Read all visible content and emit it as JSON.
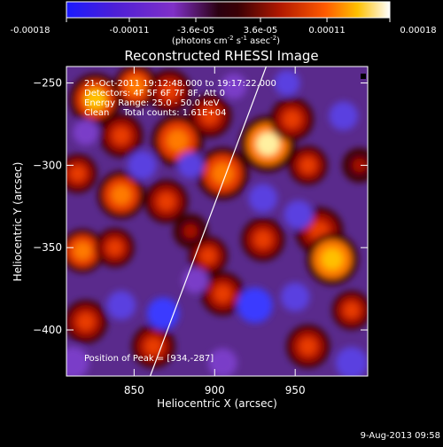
{
  "colorbar": {
    "tick_labels": [
      "-0.00018",
      "-0.00011",
      "-3.6e-05",
      "3.6e-05",
      "0.00011",
      "0.00018"
    ],
    "tick_values": [
      -0.00018,
      -0.00011,
      -3.6e-05,
      3.6e-05,
      0.00011,
      0.00018
    ],
    "unit_label_main": "(photons cm",
    "unit_sup1": "-2",
    "unit_mid1": " s",
    "unit_sup2": "-1",
    "unit_mid2": " asec",
    "unit_sup3": "-2",
    "unit_end": ")",
    "range": [
      -0.00018,
      0.00018
    ],
    "colors": [
      "#1a1aff",
      "#3b17c8",
      "#7d2ac1",
      "#2a0010",
      "#9a1000",
      "#ff4000",
      "#ffb000",
      "#ffffff"
    ]
  },
  "chart_data": {
    "type": "heatmap",
    "title": "Reconstructed RHESSI Image",
    "xlabel": "Heliocentric X (arcsec)",
    "ylabel": "Heliocentric Y (arcsec)",
    "xlim": [
      808,
      995
    ],
    "ylim": [
      -240,
      -428
    ],
    "x_ticks": [
      850,
      900,
      950
    ],
    "y_ticks": [
      -250,
      -300,
      -350,
      -400
    ],
    "x_tick_labels": [
      "850",
      "900",
      "950"
    ],
    "y_tick_labels": [
      "−250",
      "−300",
      "−350",
      "−400"
    ],
    "annotations": {
      "line1": "21-Oct-2011 19:12:48.000 to 19:17:22.000",
      "line2": "Detectors: 4F 5F 6F 7F 8F, Att 0",
      "line3": "Energy Range: 25.0 - 50.0 keV",
      "line4": "Clean     Total counts: 1.61E+04",
      "peak": "Position of Peak = [934,-287]"
    },
    "peak_position": [
      934,
      -287
    ],
    "limb_line": [
      [
        860,
        -428
      ],
      [
        932,
        -240
      ]
    ],
    "blobs": [
      {
        "x": 826,
        "y": -260,
        "v": 0.8,
        "r": 12
      },
      {
        "x": 851,
        "y": -252,
        "v": 0.7,
        "r": 10
      },
      {
        "x": 872,
        "y": -255,
        "v": 0.6,
        "r": 10
      },
      {
        "x": 842,
        "y": -282,
        "v": 0.55,
        "r": 10
      },
      {
        "x": 877,
        "y": -285,
        "v": 0.7,
        "r": 12
      },
      {
        "x": 897,
        "y": -270,
        "v": 0.6,
        "r": 10
      },
      {
        "x": 933,
        "y": -287,
        "v": 1.0,
        "r": 13
      },
      {
        "x": 948,
        "y": -272,
        "v": 0.6,
        "r": 10
      },
      {
        "x": 958,
        "y": -300,
        "v": 0.55,
        "r": 9
      },
      {
        "x": 905,
        "y": -305,
        "v": 0.7,
        "r": 12
      },
      {
        "x": 842,
        "y": -318,
        "v": 0.7,
        "r": 11
      },
      {
        "x": 815,
        "y": -305,
        "v": 0.55,
        "r": 9
      },
      {
        "x": 870,
        "y": -322,
        "v": 0.55,
        "r": 10
      },
      {
        "x": 965,
        "y": -340,
        "v": 0.6,
        "r": 11
      },
      {
        "x": 930,
        "y": -345,
        "v": 0.6,
        "r": 10
      },
      {
        "x": 896,
        "y": -355,
        "v": 0.55,
        "r": 9
      },
      {
        "x": 818,
        "y": -352,
        "v": 0.75,
        "r": 10
      },
      {
        "x": 838,
        "y": -350,
        "v": 0.6,
        "r": 9
      },
      {
        "x": 885,
        "y": -340,
        "v": 0.45,
        "r": 8
      },
      {
        "x": 973,
        "y": -357,
        "v": 0.9,
        "r": 12
      },
      {
        "x": 905,
        "y": -378,
        "v": 0.5,
        "r": 10
      },
      {
        "x": 820,
        "y": -395,
        "v": 0.55,
        "r": 10
      },
      {
        "x": 862,
        "y": -410,
        "v": 0.5,
        "r": 10
      },
      {
        "x": 958,
        "y": -410,
        "v": 0.5,
        "r": 10
      },
      {
        "x": 985,
        "y": -388,
        "v": 0.5,
        "r": 9
      },
      {
        "x": 990,
        "y": -300,
        "v": 0.45,
        "r": 8
      },
      {
        "x": 812,
        "y": -420,
        "v": -0.4,
        "r": 10
      },
      {
        "x": 855,
        "y": -300,
        "v": -0.6,
        "r": 9
      },
      {
        "x": 820,
        "y": -280,
        "v": -0.4,
        "r": 8
      },
      {
        "x": 885,
        "y": -300,
        "v": -0.5,
        "r": 8
      },
      {
        "x": 868,
        "y": -390,
        "v": -0.7,
        "r": 10
      },
      {
        "x": 842,
        "y": -385,
        "v": -0.5,
        "r": 9
      },
      {
        "x": 925,
        "y": -385,
        "v": -0.8,
        "r": 11
      },
      {
        "x": 950,
        "y": -380,
        "v": -0.5,
        "r": 9
      },
      {
        "x": 952,
        "y": -330,
        "v": -0.6,
        "r": 9
      },
      {
        "x": 930,
        "y": -320,
        "v": -0.5,
        "r": 9
      },
      {
        "x": 980,
        "y": -270,
        "v": -0.5,
        "r": 9
      },
      {
        "x": 912,
        "y": -252,
        "v": -0.4,
        "r": 8
      },
      {
        "x": 945,
        "y": -250,
        "v": -0.6,
        "r": 8
      },
      {
        "x": 985,
        "y": -420,
        "v": -0.5,
        "r": 10
      },
      {
        "x": 905,
        "y": -420,
        "v": -0.4,
        "r": 9
      },
      {
        "x": 888,
        "y": -370,
        "v": -0.35,
        "r": 8
      }
    ]
  },
  "footer": {
    "timestamp": "9-Aug-2013 09:58"
  }
}
